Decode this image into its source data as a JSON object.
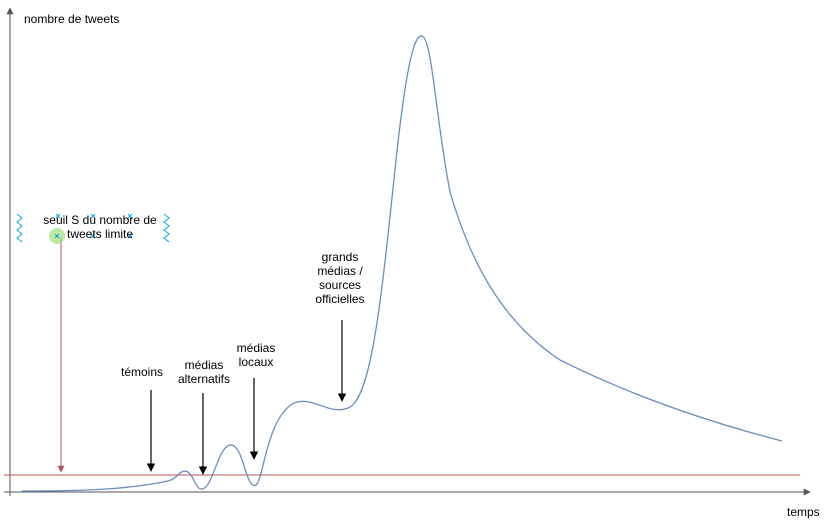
{
  "axes": {
    "y_title": "nombre de tweets",
    "x_title": "temps"
  },
  "threshold": {
    "label": "seuil S du nombre de tweets limite",
    "color": "#b85450"
  },
  "annotations": [
    {
      "id": "witness",
      "text": "témoins"
    },
    {
      "id": "alt",
      "text": "médias alternatifs"
    },
    {
      "id": "local",
      "text": "médias locaux"
    },
    {
      "id": "major",
      "text": "grands médias / sources officielles"
    }
  ],
  "colors": {
    "axis": "#555555",
    "curve": "#6c8ebf",
    "arrow": "#000000",
    "selection": "#00a8e8"
  }
}
